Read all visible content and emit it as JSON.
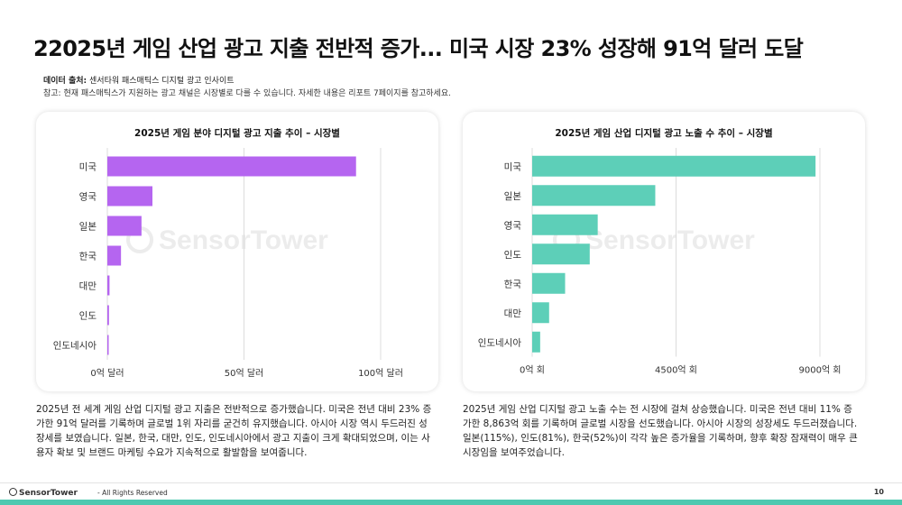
{
  "header": {
    "title": "22025년 게임 산업 광고 지출 전반적 증가... 미국 시장 23% 성장해 91억 달러 도달",
    "source_label": "데이터 출처:",
    "source_value": "센서타워 패스매틱스 디지털 광고 인사이트",
    "note": "참고: 현재 패스매틱스가 지원하는 광고 채널은 시장별로 다를 수 있습니다. 자세한 내용은 리포트 7페이지를 참고하세요."
  },
  "colors": {
    "left_bar": "#b565f0",
    "right_bar": "#5dcfb8",
    "accent": "#4ec9b0"
  },
  "watermark": "SensorTower",
  "chart_data": [
    {
      "type": "bar",
      "orientation": "horizontal",
      "title": "2025년 게임 분야 디지털 광고 지출 추이 – 시장별",
      "categories": [
        "미국",
        "영국",
        "일본",
        "한국",
        "대만",
        "인도",
        "인도네시아"
      ],
      "values": [
        91,
        16.5,
        12.5,
        5,
        0.8,
        0.6,
        0.15
      ],
      "xlim": [
        0,
        100
      ],
      "ticks": [
        0,
        50,
        100
      ],
      "tick_labels": [
        "0억 달러",
        "50억 달러",
        "100억 달러"
      ],
      "grid": true
    },
    {
      "type": "bar",
      "orientation": "horizontal",
      "title": "2025년 게임 산업 디지털 광고 노출 수 추이 – 시장별",
      "categories": [
        "미국",
        "일본",
        "영국",
        "인도",
        "한국",
        "대만",
        "인도네시아"
      ],
      "values": [
        8863,
        3850,
        2050,
        1800,
        1030,
        530,
        250
      ],
      "xlim": [
        0,
        9000
      ],
      "ticks": [
        0,
        4500,
        9000
      ],
      "tick_labels": [
        "0억 회",
        "4500억 회",
        "9000억 회"
      ],
      "grid": true
    }
  ],
  "descriptions": {
    "left": "2025년 전 세계 게임 산업 디지털 광고 지출은 전반적으로 증가했습니다. 미국은 전년 대비 23% 증가한 91억 달러를 기록하며 글로벌 1위 자리를 굳건히 유지했습니다. 아시아 시장 역시 두드러진 성장세를 보였습니다. 일본, 한국, 대만, 인도, 인도네시아에서 광고 지출이 크게 확대되었으며, 이는 사용자 확보 및 브랜드 마케팅 수요가 지속적으로 활발함을 보여줍니다.",
    "right": "2025년 게임 산업 디지털 광고 노출 수는 전 시장에 걸쳐 상승했습니다. 미국은 전년 대비 11% 증가한 8,863억 회를 기록하며 글로벌 시장을 선도했습니다. 아시아 시장의 성장세도 두드러졌습니다. 일본(115%), 인도(81%), 한국(52%)이 각각 높은 증가율을 기록하며, 향후 확장 잠재력이 매우 큰 시장임을 보여주었습니다."
  },
  "footer": {
    "logo": "SensorTower",
    "copyright": "- All Rights Reserved",
    "page_number": "10"
  }
}
